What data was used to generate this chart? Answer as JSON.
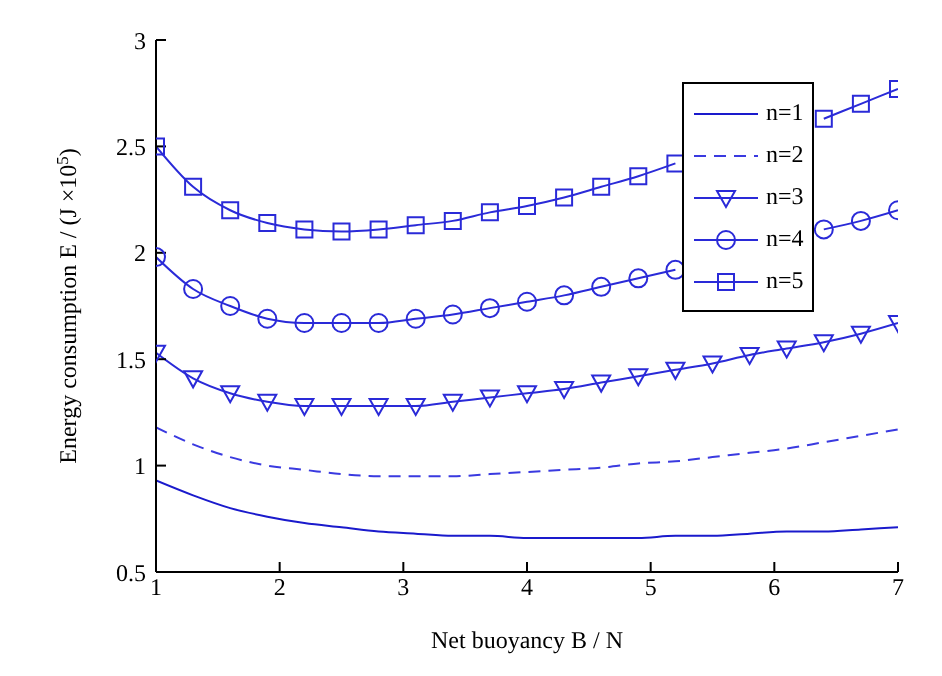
{
  "chart_data": {
    "type": "line",
    "xlabel": "Net buoyancy B / N",
    "ylabel": "Energy consumption E / (J ×10$^{5}$)",
    "x": [
      1,
      1.3,
      1.6,
      1.9,
      2.2,
      2.5,
      2.8,
      3.1,
      3.4,
      3.7,
      4,
      4.3,
      4.6,
      4.9,
      5.2,
      5.5,
      5.8,
      6.1,
      6.4,
      6.7,
      7
    ],
    "series": [
      {
        "name": "n=1",
        "color": "#1a1acc",
        "marker": "none",
        "line_style": "solid",
        "values": [
          0.93,
          0.86,
          0.8,
          0.76,
          0.73,
          0.71,
          0.69,
          0.68,
          0.67,
          0.67,
          0.66,
          0.66,
          0.66,
          0.66,
          0.67,
          0.67,
          0.68,
          0.69,
          0.69,
          0.7,
          0.71
        ]
      },
      {
        "name": "n=2",
        "color": "#3a3ae0",
        "marker": "none",
        "line_style": "dashed",
        "values": [
          1.18,
          1.1,
          1.04,
          1,
          0.98,
          0.96,
          0.95,
          0.95,
          0.95,
          0.96,
          0.97,
          0.98,
          0.99,
          1.01,
          1.02,
          1.04,
          1.06,
          1.08,
          1.11,
          1.14,
          1.17
        ]
      },
      {
        "name": "n=3",
        "color": "#2a2ad8",
        "marker": "triangle",
        "line_style": "solid",
        "values": [
          1.53,
          1.41,
          1.34,
          1.3,
          1.28,
          1.28,
          1.28,
          1.28,
          1.3,
          1.32,
          1.34,
          1.36,
          1.39,
          1.42,
          1.45,
          1.48,
          1.52,
          1.55,
          1.58,
          1.62,
          1.67
        ]
      },
      {
        "name": "n=4",
        "color": "#2a2ad8",
        "marker": "circle",
        "line_style": "solid",
        "values": [
          1.98,
          1.83,
          1.75,
          1.69,
          1.67,
          1.67,
          1.67,
          1.69,
          1.71,
          1.74,
          1.77,
          1.8,
          1.84,
          1.88,
          1.92,
          null,
          null,
          null,
          2.11,
          2.15,
          2.2
        ]
      },
      {
        "name": "n=5",
        "color": "#2a2ad8",
        "marker": "square",
        "line_style": "solid",
        "values": [
          2.5,
          2.31,
          2.2,
          2.14,
          2.11,
          2.1,
          2.11,
          2.13,
          2.15,
          2.19,
          2.22,
          2.26,
          2.31,
          2.36,
          2.42,
          null,
          null,
          null,
          2.63,
          2.7,
          2.77
        ]
      }
    ],
    "xlim": [
      1,
      7
    ],
    "xticks": [
      1,
      2,
      3,
      4,
      5,
      6,
      7
    ],
    "ylim": [
      0.5,
      3
    ],
    "yticks": [
      0.5,
      1,
      1.5,
      2,
      2.5,
      3
    ],
    "grid": false,
    "legend": "top right"
  }
}
